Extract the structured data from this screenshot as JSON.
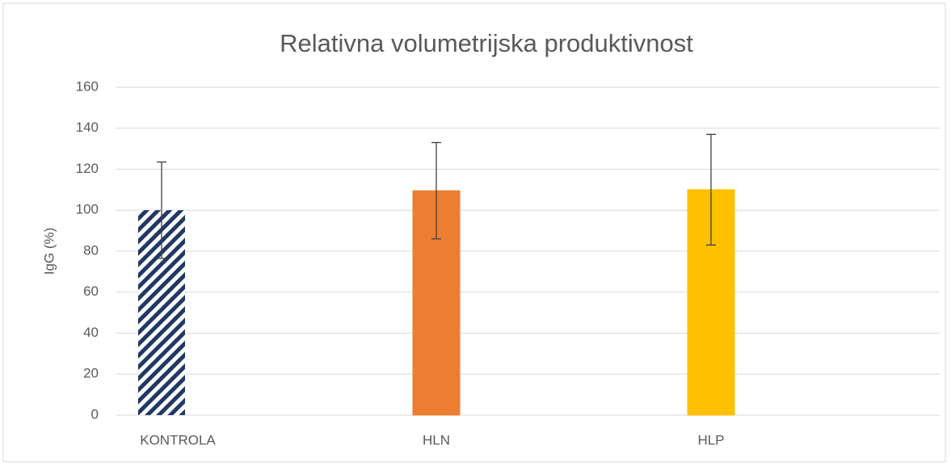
{
  "chart_data": {
    "type": "bar",
    "title": "Relativna volumetrijska produktivnost",
    "ylabel": "IgG (%)",
    "categories": [
      "KONTROLA",
      "HLN",
      "HLP"
    ],
    "values": [
      100,
      109.5,
      110
    ],
    "errors": [
      23.5,
      23.5,
      27
    ],
    "colors": [
      "#203864",
      "#ed7d31",
      "#ffc000"
    ],
    "hatched": [
      true,
      false,
      false
    ],
    "ylim": [
      0,
      160
    ],
    "yticks": [
      0,
      20,
      40,
      60,
      80,
      100,
      120,
      140,
      160
    ],
    "grid": true
  }
}
